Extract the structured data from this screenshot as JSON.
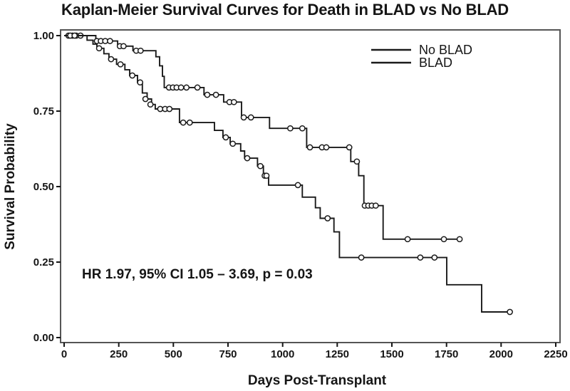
{
  "figure": {
    "colors": {
      "curve": "#1a1a1a",
      "frame": "#555555",
      "text": "#151515",
      "background": "#ffffff"
    }
  },
  "chart_data": {
    "type": "line",
    "subtype": "kaplan-meier-step",
    "title": "Kaplan-Meier Survival Curves for Death in BLAD vs No BLAD",
    "xlabel": "Days Post-Transplant",
    "ylabel": "Survival Probability",
    "xlim": [
      0,
      2250
    ],
    "ylim": [
      0.0,
      1.0
    ],
    "grid": false,
    "x_ticks": [
      {
        "label": "0",
        "value": 0
      },
      {
        "label": "250",
        "value": 250
      },
      {
        "label": "500",
        "value": 500
      },
      {
        "label": "750",
        "value": 750
      },
      {
        "label": "1000",
        "value": 1000
      },
      {
        "label": "1250",
        "value": 1250
      },
      {
        "label": "1500",
        "value": 1500
      },
      {
        "label": "1750",
        "value": 1750
      },
      {
        "label": "2000",
        "value": 2000
      },
      {
        "label": "2250",
        "value": 2250
      }
    ],
    "y_ticks": [
      {
        "label": "0.00",
        "value": 0.0
      },
      {
        "label": "0.25",
        "value": 0.25
      },
      {
        "label": "0.50",
        "value": 0.5
      },
      {
        "label": "0.75",
        "value": 0.75
      },
      {
        "label": "1.00",
        "value": 1.0
      }
    ],
    "legend": {
      "position": "top-right",
      "entries": [
        "No BLAD",
        "BLAD"
      ]
    },
    "annotation": "HR 1.97, 95% CI 1.05 – 3.69, p = 0.03",
    "series": [
      {
        "name": "No BLAD",
        "steps": [
          [
            0,
            1.0
          ],
          [
            145,
            0.982
          ],
          [
            245,
            0.965
          ],
          [
            315,
            0.95
          ],
          [
            420,
            0.93
          ],
          [
            437,
            0.9
          ],
          [
            450,
            0.865
          ],
          [
            458,
            0.828
          ],
          [
            640,
            0.804
          ],
          [
            730,
            0.78
          ],
          [
            812,
            0.729
          ],
          [
            940,
            0.693
          ],
          [
            1110,
            0.63
          ],
          [
            1312,
            0.583
          ],
          [
            1348,
            0.536
          ],
          [
            1372,
            0.437
          ],
          [
            1460,
            0.326
          ]
        ],
        "end_day": 1810,
        "censors": [
          [
            20,
            1.0
          ],
          [
            38,
            1.0
          ],
          [
            55,
            1.0
          ],
          [
            75,
            1.0
          ],
          [
            150,
            0.982
          ],
          [
            168,
            0.982
          ],
          [
            188,
            0.982
          ],
          [
            210,
            0.982
          ],
          [
            255,
            0.965
          ],
          [
            272,
            0.965
          ],
          [
            330,
            0.95
          ],
          [
            350,
            0.95
          ],
          [
            480,
            0.828
          ],
          [
            498,
            0.828
          ],
          [
            515,
            0.828
          ],
          [
            535,
            0.828
          ],
          [
            560,
            0.828
          ],
          [
            610,
            0.828
          ],
          [
            655,
            0.804
          ],
          [
            695,
            0.804
          ],
          [
            757,
            0.78
          ],
          [
            777,
            0.78
          ],
          [
            822,
            0.729
          ],
          [
            855,
            0.729
          ],
          [
            1035,
            0.693
          ],
          [
            1090,
            0.693
          ],
          [
            1125,
            0.63
          ],
          [
            1180,
            0.63
          ],
          [
            1200,
            0.63
          ],
          [
            1305,
            0.63
          ],
          [
            1340,
            0.583
          ],
          [
            1376,
            0.437
          ],
          [
            1392,
            0.437
          ],
          [
            1408,
            0.437
          ],
          [
            1426,
            0.437
          ],
          [
            1572,
            0.326
          ],
          [
            1738,
            0.326
          ],
          [
            1810,
            0.326
          ]
        ]
      },
      {
        "name": "BLAD",
        "steps": [
          [
            0,
            1.0
          ],
          [
            105,
            0.985
          ],
          [
            132,
            0.972
          ],
          [
            150,
            0.958
          ],
          [
            182,
            0.94
          ],
          [
            205,
            0.922
          ],
          [
            240,
            0.905
          ],
          [
            278,
            0.887
          ],
          [
            300,
            0.868
          ],
          [
            336,
            0.845
          ],
          [
            358,
            0.81
          ],
          [
            380,
            0.79
          ],
          [
            400,
            0.772
          ],
          [
            417,
            0.757
          ],
          [
            528,
            0.712
          ],
          [
            688,
            0.686
          ],
          [
            727,
            0.663
          ],
          [
            760,
            0.642
          ],
          [
            808,
            0.618
          ],
          [
            826,
            0.594
          ],
          [
            885,
            0.568
          ],
          [
            912,
            0.536
          ],
          [
            936,
            0.505
          ],
          [
            1090,
            0.465
          ],
          [
            1150,
            0.43
          ],
          [
            1172,
            0.395
          ],
          [
            1235,
            0.35
          ],
          [
            1260,
            0.265
          ],
          [
            1751,
            0.175
          ],
          [
            1911,
            0.085
          ]
        ],
        "end_day": 2040,
        "censors": [
          [
            28,
            1.0
          ],
          [
            48,
            1.0
          ],
          [
            160,
            0.958
          ],
          [
            215,
            0.922
          ],
          [
            258,
            0.905
          ],
          [
            312,
            0.868
          ],
          [
            348,
            0.845
          ],
          [
            372,
            0.79
          ],
          [
            395,
            0.772
          ],
          [
            440,
            0.757
          ],
          [
            462,
            0.757
          ],
          [
            482,
            0.757
          ],
          [
            545,
            0.712
          ],
          [
            575,
            0.712
          ],
          [
            740,
            0.663
          ],
          [
            772,
            0.642
          ],
          [
            838,
            0.594
          ],
          [
            898,
            0.568
          ],
          [
            918,
            0.536
          ],
          [
            926,
            0.536
          ],
          [
            1070,
            0.505
          ],
          [
            1206,
            0.395
          ],
          [
            1360,
            0.265
          ],
          [
            1630,
            0.265
          ],
          [
            1695,
            0.265
          ],
          [
            2040,
            0.085
          ]
        ]
      }
    ]
  }
}
